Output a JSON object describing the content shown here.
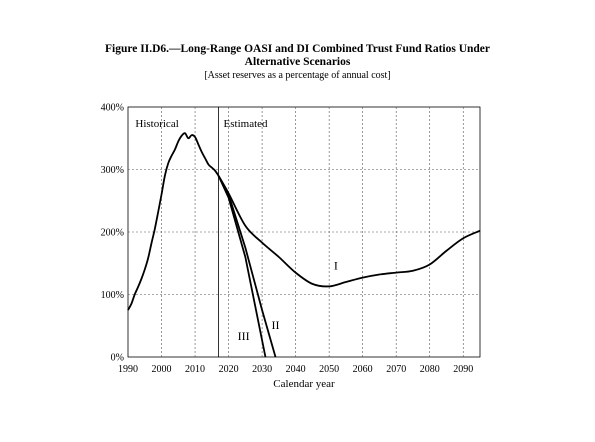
{
  "header": {
    "title_line1": "Figure II.D6.—Long-Range OASI and DI Combined Trust Fund Ratios Under",
    "title_line2": "Alternative Scenarios",
    "subtitle": "[Asset reserves as a percentage of annual cost]"
  },
  "chart_data": {
    "type": "line",
    "xlabel": "Calendar year",
    "ylabel": "",
    "xlim": [
      1990,
      2095
    ],
    "ylim": [
      0,
      400
    ],
    "x_ticks": [
      1990,
      2000,
      2010,
      2020,
      2030,
      2040,
      2050,
      2060,
      2070,
      2080,
      2090
    ],
    "y_ticks": [
      0,
      100,
      200,
      300,
      400
    ],
    "y_tick_labels": [
      "0%",
      "100%",
      "200%",
      "300%",
      "400%"
    ],
    "grid": true,
    "divider_year": 2017,
    "region_labels": {
      "historical": "Historical",
      "estimated": "Estimated"
    },
    "series": [
      {
        "label": "Historical",
        "color": "#000000",
        "x": [
          1990,
          1991,
          1992,
          1993,
          1994,
          1995,
          1996,
          1997,
          1998,
          1999,
          2000,
          2001,
          2002,
          2003,
          2004,
          2005,
          2006,
          2007,
          2008,
          2009,
          2010,
          2011,
          2012,
          2013,
          2014,
          2015,
          2016,
          2017
        ],
        "y": [
          75,
          85,
          100,
          112,
          125,
          140,
          158,
          182,
          205,
          232,
          260,
          290,
          310,
          322,
          332,
          345,
          354,
          358,
          350,
          355,
          352,
          340,
          328,
          318,
          308,
          303,
          298,
          290
        ]
      },
      {
        "label": "I",
        "color": "#000000",
        "x": [
          2017,
          2020,
          2025,
          2030,
          2035,
          2040,
          2045,
          2050,
          2055,
          2060,
          2065,
          2070,
          2075,
          2080,
          2085,
          2090,
          2095
        ],
        "y": [
          290,
          262,
          210,
          183,
          160,
          135,
          117,
          113,
          120,
          127,
          132,
          135,
          138,
          148,
          170,
          190,
          202
        ]
      },
      {
        "label": "II",
        "color": "#000000",
        "x": [
          2017,
          2020,
          2025,
          2030,
          2034
        ],
        "y": [
          290,
          260,
          175,
          75,
          0
        ]
      },
      {
        "label": "III",
        "color": "#000000",
        "x": [
          2017,
          2020,
          2025,
          2031
        ],
        "y": [
          290,
          255,
          160,
          0
        ]
      }
    ]
  }
}
